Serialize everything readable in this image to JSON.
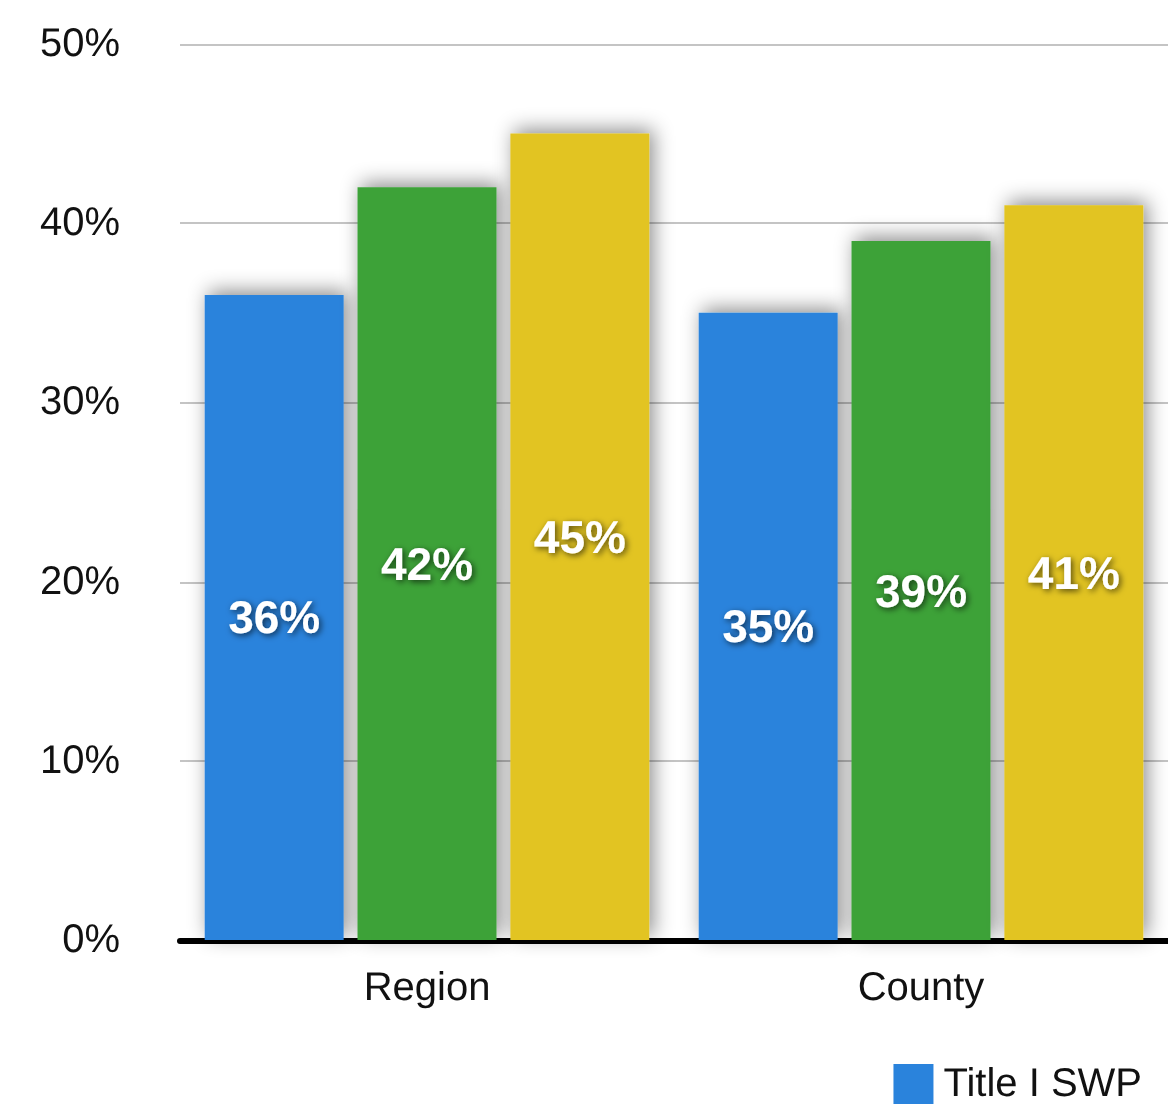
{
  "chart_data": {
    "type": "bar",
    "categories": [
      "Region",
      "County"
    ],
    "series": [
      {
        "name": "Title I SWP",
        "color": "#2a83dc",
        "values": [
          36,
          35
        ],
        "value_labels": [
          "36%",
          "35%"
        ]
      },
      {
        "color": "#3ca238",
        "values": [
          42,
          39
        ],
        "value_labels": [
          "42%",
          "39%"
        ]
      },
      {
        "color": "#e2c424",
        "values": [
          45,
          41
        ],
        "value_labels": [
          "45%",
          "41%"
        ]
      }
    ],
    "ylim": [
      0,
      50
    ],
    "yticks": [
      {
        "value": 0,
        "label": "0%"
      },
      {
        "value": 10,
        "label": "10%"
      },
      {
        "value": 20,
        "label": "20%"
      },
      {
        "value": 30,
        "label": "30%"
      },
      {
        "value": 40,
        "label": "40%"
      },
      {
        "value": 50,
        "label": "50%"
      }
    ],
    "grid": "y",
    "legend": "bottom right"
  }
}
